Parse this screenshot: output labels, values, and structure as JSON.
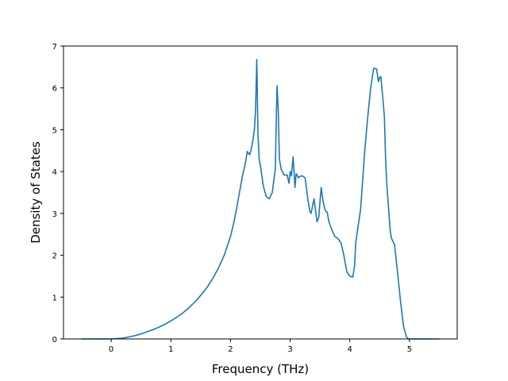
{
  "chart_data": {
    "type": "line",
    "title": "",
    "xlabel": "Frequency (THz)",
    "ylabel": "Density of States",
    "xlim": [
      -0.8,
      5.8
    ],
    "ylim": [
      0,
      7
    ],
    "xticks": [
      0,
      1,
      2,
      3,
      4,
      5
    ],
    "yticks": [
      0,
      1,
      2,
      3,
      4,
      5,
      6,
      7
    ],
    "grid": false,
    "series": [
      {
        "color": "#1f77b4",
        "x": [
          -0.5,
          0.0,
          0.1,
          0.2,
          0.3,
          0.4,
          0.5,
          0.6,
          0.7,
          0.8,
          0.9,
          1.0,
          1.1,
          1.2,
          1.3,
          1.4,
          1.5,
          1.6,
          1.7,
          1.8,
          1.9,
          2.0,
          2.05,
          2.1,
          2.15,
          2.2,
          2.25,
          2.28,
          2.32,
          2.35,
          2.38,
          2.4,
          2.42,
          2.44,
          2.46,
          2.48,
          2.5,
          2.55,
          2.6,
          2.65,
          2.7,
          2.75,
          2.78,
          2.8,
          2.82,
          2.85,
          2.9,
          2.95,
          2.98,
          3.0,
          3.02,
          3.05,
          3.08,
          3.1,
          3.12,
          3.14,
          3.16,
          3.2,
          3.25,
          3.3,
          3.33,
          3.35,
          3.4,
          3.45,
          3.48,
          3.5,
          3.52,
          3.55,
          3.58,
          3.6,
          3.62,
          3.65,
          3.7,
          3.75,
          3.8,
          3.85,
          3.9,
          3.95,
          4.0,
          4.05,
          4.08,
          4.1,
          4.14,
          4.18,
          4.22,
          4.25,
          4.3,
          4.35,
          4.4,
          4.45,
          4.48,
          4.5,
          4.52,
          4.55,
          4.58,
          4.6,
          4.62,
          4.65,
          4.68,
          4.7,
          4.75,
          4.8,
          4.85,
          4.9,
          4.95,
          4.98,
          5.0,
          5.03,
          5.1,
          5.5
        ],
        "y": [
          0,
          0,
          0.01,
          0.02,
          0.05,
          0.08,
          0.12,
          0.17,
          0.22,
          0.28,
          0.35,
          0.43,
          0.52,
          0.62,
          0.74,
          0.88,
          1.04,
          1.22,
          1.44,
          1.7,
          2.02,
          2.45,
          2.75,
          3.1,
          3.5,
          3.9,
          4.2,
          4.48,
          4.4,
          4.55,
          4.8,
          5.0,
          5.5,
          6.68,
          4.9,
          4.3,
          4.15,
          3.65,
          3.4,
          3.35,
          3.5,
          4.05,
          6.05,
          5.5,
          4.3,
          4.05,
          3.92,
          3.92,
          3.72,
          4.0,
          3.9,
          4.35,
          3.62,
          3.95,
          3.9,
          3.85,
          3.88,
          3.9,
          3.85,
          3.3,
          3.05,
          3.0,
          3.35,
          2.8,
          2.9,
          3.3,
          3.62,
          3.3,
          3.1,
          3.05,
          3.03,
          2.8,
          2.6,
          2.45,
          2.4,
          2.3,
          2.0,
          1.6,
          1.5,
          1.48,
          1.75,
          2.3,
          2.7,
          3.1,
          3.9,
          4.5,
          5.3,
          6.0,
          6.47,
          6.45,
          6.15,
          6.25,
          6.27,
          5.8,
          5.3,
          4.3,
          3.7,
          3.1,
          2.55,
          2.4,
          2.25,
          1.6,
          0.9,
          0.3,
          0.05,
          0,
          0,
          0,
          0,
          0
        ]
      }
    ]
  }
}
